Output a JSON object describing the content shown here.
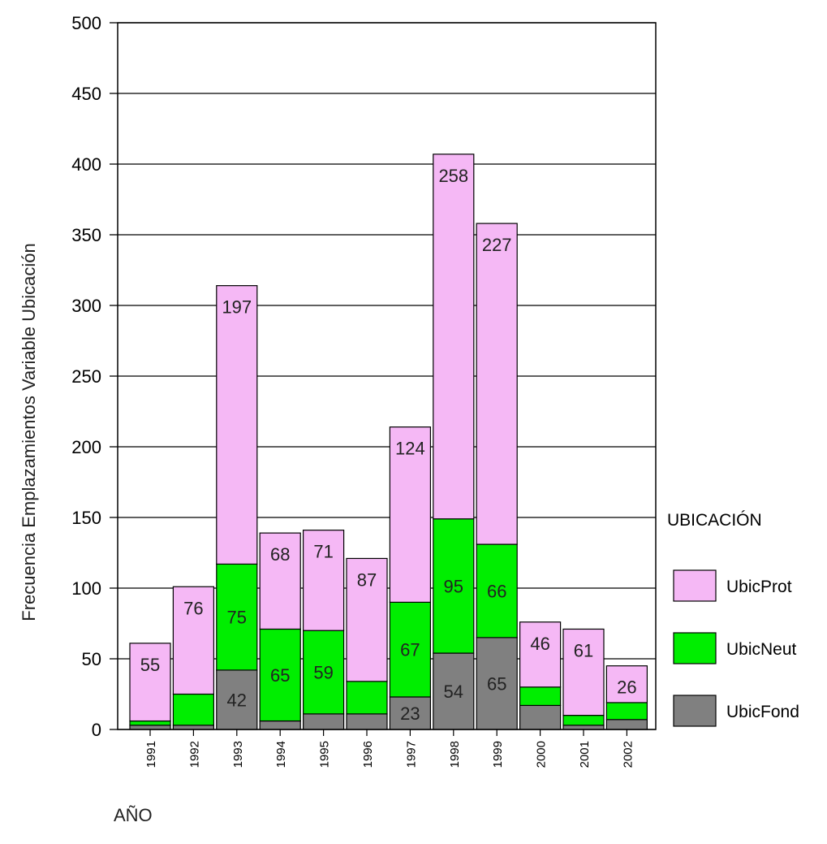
{
  "chart_data": {
    "type": "bar",
    "stacked": true,
    "categories": [
      "1991",
      "1992",
      "1993",
      "1994",
      "1995",
      "1996",
      "1997",
      "1998",
      "1999",
      "2000",
      "2001",
      "2002"
    ],
    "series": [
      {
        "name": "UbicFond",
        "color": "#808080",
        "values": [
          3,
          3,
          42,
          6,
          11,
          11,
          23,
          54,
          65,
          17,
          3,
          7
        ]
      },
      {
        "name": "UbicNeut",
        "color": "#00ee00",
        "values": [
          3,
          22,
          75,
          65,
          59,
          23,
          67,
          95,
          66,
          13,
          7,
          12
        ]
      },
      {
        "name": "UbicProt",
        "color": "#f5b8f5",
        "values": [
          55,
          76,
          197,
          68,
          71,
          87,
          124,
          258,
          227,
          46,
          61,
          26
        ]
      }
    ],
    "data_labels": {
      "UbicFond": [
        null,
        null,
        "42",
        null,
        null,
        null,
        "23",
        "54",
        "65",
        null,
        null,
        null
      ],
      "UbicNeut": [
        null,
        null,
        "75",
        "65",
        "59",
        null,
        "67",
        "95",
        "66",
        null,
        null,
        null
      ],
      "UbicProt": [
        "55",
        "76",
        "197",
        "68",
        "71",
        "87",
        "124",
        "258",
        "227",
        "46",
        "61",
        "26"
      ]
    },
    "y_ticks": [
      "0",
      "50",
      "100",
      "150",
      "200",
      "250",
      "300",
      "350",
      "400",
      "450",
      "500"
    ],
    "ylim": [
      0,
      500
    ],
    "ylabel": "Frecuencia Emplazamientos Variable Ubicación",
    "xlabel": "AÑO",
    "legend_title": "UBICACIÓN",
    "legend_order": [
      "UbicProt",
      "UbicNeut",
      "UbicFond"
    ],
    "legend_position": "right",
    "grid": "horizontal"
  }
}
